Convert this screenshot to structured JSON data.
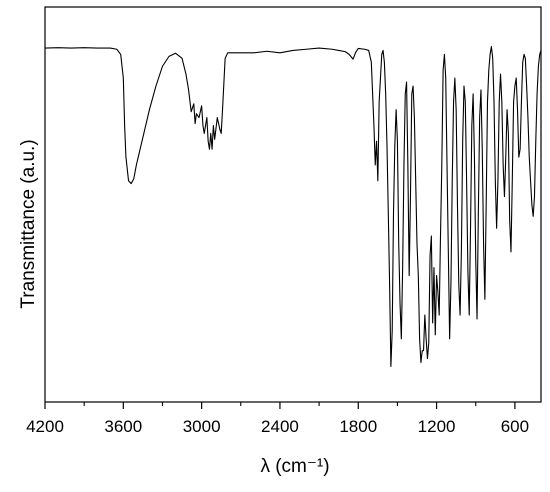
{
  "chart_data": {
    "type": "line",
    "title": "",
    "xlabel": "λ (cm⁻¹)",
    "ylabel": "Transmittance (a.u.)",
    "x_reversed": true,
    "xlim": [
      4200,
      400
    ],
    "ylim": [
      0,
      1
    ],
    "x_ticks": [
      4200,
      3600,
      3000,
      2400,
      1800,
      1200,
      600
    ],
    "x_minor_ticks": [
      3900,
      3300,
      2700,
      2100,
      1500,
      900
    ],
    "y_ticks_shown": false,
    "grid": false,
    "series": [
      {
        "points": [
          [
            4200,
            0.896
          ],
          [
            4100,
            0.897
          ],
          [
            4000,
            0.896
          ],
          [
            3900,
            0.897
          ],
          [
            3800,
            0.896
          ],
          [
            3700,
            0.896
          ],
          [
            3650,
            0.893
          ],
          [
            3620,
            0.88
          ],
          [
            3600,
            0.82
          ],
          [
            3590,
            0.7
          ],
          [
            3580,
            0.62
          ],
          [
            3560,
            0.56
          ],
          [
            3540,
            0.553
          ],
          [
            3520,
            0.565
          ],
          [
            3500,
            0.6
          ],
          [
            3450,
            0.67
          ],
          [
            3400,
            0.74
          ],
          [
            3350,
            0.8
          ],
          [
            3300,
            0.85
          ],
          [
            3250,
            0.875
          ],
          [
            3200,
            0.883
          ],
          [
            3150,
            0.87
          ],
          [
            3120,
            0.83
          ],
          [
            3100,
            0.79
          ],
          [
            3080,
            0.735
          ],
          [
            3060,
            0.755
          ],
          [
            3050,
            0.705
          ],
          [
            3040,
            0.73
          ],
          [
            3020,
            0.72
          ],
          [
            3000,
            0.75
          ],
          [
            2990,
            0.7
          ],
          [
            2980,
            0.68
          ],
          [
            2960,
            0.72
          ],
          [
            2950,
            0.66
          ],
          [
            2940,
            0.64
          ],
          [
            2930,
            0.68
          ],
          [
            2920,
            0.64
          ],
          [
            2910,
            0.7
          ],
          [
            2900,
            0.665
          ],
          [
            2880,
            0.72
          ],
          [
            2860,
            0.69
          ],
          [
            2850,
            0.68
          ],
          [
            2840,
            0.74
          ],
          [
            2820,
            0.87
          ],
          [
            2800,
            0.884
          ],
          [
            2600,
            0.884
          ],
          [
            2500,
            0.888
          ],
          [
            2400,
            0.884
          ],
          [
            2300,
            0.89
          ],
          [
            2200,
            0.893
          ],
          [
            2100,
            0.896
          ],
          [
            2000,
            0.893
          ],
          [
            1950,
            0.89
          ],
          [
            1900,
            0.887
          ],
          [
            1870,
            0.88
          ],
          [
            1840,
            0.868
          ],
          [
            1820,
            0.885
          ],
          [
            1800,
            0.895
          ],
          [
            1750,
            0.893
          ],
          [
            1720,
            0.89
          ],
          [
            1700,
            0.86
          ],
          [
            1680,
            0.7
          ],
          [
            1670,
            0.6
          ],
          [
            1660,
            0.66
          ],
          [
            1650,
            0.56
          ],
          [
            1640,
            0.76
          ],
          [
            1620,
            0.88
          ],
          [
            1610,
            0.89
          ],
          [
            1600,
            0.86
          ],
          [
            1590,
            0.78
          ],
          [
            1580,
            0.65
          ],
          [
            1570,
            0.48
          ],
          [
            1560,
            0.3
          ],
          [
            1550,
            0.09
          ],
          [
            1540,
            0.18
          ],
          [
            1530,
            0.48
          ],
          [
            1520,
            0.65
          ],
          [
            1510,
            0.74
          ],
          [
            1500,
            0.66
          ],
          [
            1490,
            0.4
          ],
          [
            1480,
            0.25
          ],
          [
            1470,
            0.16
          ],
          [
            1460,
            0.34
          ],
          [
            1450,
            0.6
          ],
          [
            1440,
            0.78
          ],
          [
            1430,
            0.81
          ],
          [
            1420,
            0.6
          ],
          [
            1410,
            0.32
          ],
          [
            1400,
            0.52
          ],
          [
            1390,
            0.78
          ],
          [
            1380,
            0.8
          ],
          [
            1370,
            0.72
          ],
          [
            1360,
            0.56
          ],
          [
            1350,
            0.4
          ],
          [
            1340,
            0.32
          ],
          [
            1330,
            0.16
          ],
          [
            1320,
            0.1
          ],
          [
            1310,
            0.13
          ],
          [
            1300,
            0.13
          ],
          [
            1290,
            0.22
          ],
          [
            1280,
            0.16
          ],
          [
            1270,
            0.11
          ],
          [
            1260,
            0.15
          ],
          [
            1250,
            0.37
          ],
          [
            1240,
            0.42
          ],
          [
            1230,
            0.2
          ],
          [
            1220,
            0.34
          ],
          [
            1210,
            0.17
          ],
          [
            1200,
            0.32
          ],
          [
            1190,
            0.28
          ],
          [
            1180,
            0.22
          ],
          [
            1170,
            0.42
          ],
          [
            1160,
            0.6
          ],
          [
            1150,
            0.84
          ],
          [
            1140,
            0.88
          ],
          [
            1130,
            0.82
          ],
          [
            1120,
            0.6
          ],
          [
            1110,
            0.38
          ],
          [
            1100,
            0.16
          ],
          [
            1090,
            0.3
          ],
          [
            1080,
            0.56
          ],
          [
            1070,
            0.76
          ],
          [
            1060,
            0.82
          ],
          [
            1050,
            0.74
          ],
          [
            1040,
            0.5
          ],
          [
            1030,
            0.3
          ],
          [
            1020,
            0.22
          ],
          [
            1010,
            0.38
          ],
          [
            1000,
            0.66
          ],
          [
            990,
            0.8
          ],
          [
            980,
            0.76
          ],
          [
            970,
            0.56
          ],
          [
            960,
            0.33
          ],
          [
            950,
            0.22
          ],
          [
            940,
            0.44
          ],
          [
            930,
            0.7
          ],
          [
            920,
            0.78
          ],
          [
            910,
            0.62
          ],
          [
            900,
            0.36
          ],
          [
            890,
            0.21
          ],
          [
            880,
            0.48
          ],
          [
            870,
            0.72
          ],
          [
            860,
            0.79
          ],
          [
            850,
            0.64
          ],
          [
            840,
            0.4
          ],
          [
            830,
            0.26
          ],
          [
            820,
            0.5
          ],
          [
            810,
            0.76
          ],
          [
            800,
            0.84
          ],
          [
            790,
            0.88
          ],
          [
            780,
            0.9
          ],
          [
            770,
            0.87
          ],
          [
            760,
            0.76
          ],
          [
            750,
            0.56
          ],
          [
            740,
            0.44
          ],
          [
            730,
            0.56
          ],
          [
            720,
            0.76
          ],
          [
            710,
            0.83
          ],
          [
            700,
            0.76
          ],
          [
            690,
            0.6
          ],
          [
            680,
            0.52
          ],
          [
            670,
            0.62
          ],
          [
            660,
            0.74
          ],
          [
            650,
            0.68
          ],
          [
            640,
            0.46
          ],
          [
            630,
            0.38
          ],
          [
            620,
            0.56
          ],
          [
            610,
            0.76
          ],
          [
            600,
            0.8
          ],
          [
            590,
            0.82
          ],
          [
            580,
            0.74
          ],
          [
            570,
            0.62
          ],
          [
            560,
            0.64
          ],
          [
            550,
            0.76
          ],
          [
            540,
            0.86
          ],
          [
            530,
            0.88
          ],
          [
            520,
            0.87
          ],
          [
            510,
            0.8
          ],
          [
            500,
            0.72
          ],
          [
            490,
            0.62
          ],
          [
            480,
            0.56
          ],
          [
            470,
            0.5
          ],
          [
            460,
            0.47
          ],
          [
            450,
            0.52
          ],
          [
            440,
            0.66
          ],
          [
            430,
            0.78
          ],
          [
            420,
            0.85
          ],
          [
            410,
            0.88
          ],
          [
            400,
            0.89
          ]
        ]
      }
    ]
  }
}
